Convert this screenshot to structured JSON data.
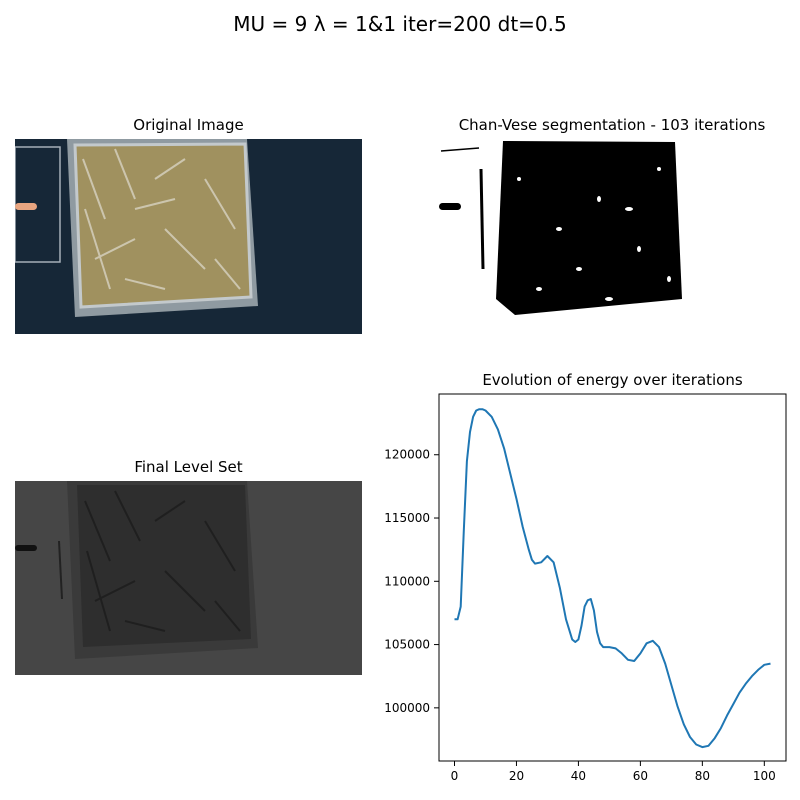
{
  "suptitle": "MU = 9 λ = 1&1 iter=200 dt=0.5",
  "panels": {
    "original": {
      "title": "Original Image"
    },
    "segmentation": {
      "title": "Chan-Vese segmentation - 103 iterations"
    },
    "levelset": {
      "title": "Final Level Set"
    }
  },
  "chart_data": {
    "type": "line",
    "title": "Evolution of energy over iterations",
    "xlabel": "",
    "ylabel": "",
    "xlim": [
      -5,
      107
    ],
    "ylim": [
      95800,
      124800
    ],
    "xticks": [
      0,
      20,
      40,
      60,
      80,
      100
    ],
    "yticks": [
      100000,
      105000,
      110000,
      115000,
      120000
    ],
    "grid": false,
    "color": "#1f77b4",
    "series": [
      {
        "x": [
          0,
          1,
          2,
          3,
          4,
          5,
          6,
          7,
          8,
          9,
          10,
          12,
          14,
          16,
          18,
          20,
          22,
          24,
          25,
          26,
          28,
          30,
          32,
          34,
          36,
          38,
          39,
          40,
          41,
          42,
          43,
          44,
          45,
          46,
          47,
          48,
          50,
          52,
          54,
          56,
          58,
          60,
          62,
          64,
          66,
          68,
          70,
          72,
          74,
          76,
          78,
          80,
          82,
          84,
          86,
          88,
          90,
          92,
          94,
          96,
          98,
          100,
          102
        ],
        "y": [
          107000,
          107000,
          108000,
          114000,
          119500,
          121800,
          123000,
          123500,
          123600,
          123600,
          123500,
          123000,
          122000,
          120500,
          118500,
          116500,
          114300,
          112500,
          111700,
          111400,
          111500,
          112000,
          111500,
          109500,
          107000,
          105400,
          105200,
          105400,
          106500,
          108000,
          108500,
          108600,
          107700,
          106000,
          105100,
          104800,
          104800,
          104700,
          104300,
          103800,
          103700,
          104300,
          105100,
          105300,
          104800,
          103500,
          101800,
          100100,
          98700,
          97700,
          97100,
          96900,
          97000,
          97600,
          98400,
          99400,
          100300,
          101200,
          101900,
          102500,
          103000,
          103400,
          103500
        ]
      }
    ]
  }
}
